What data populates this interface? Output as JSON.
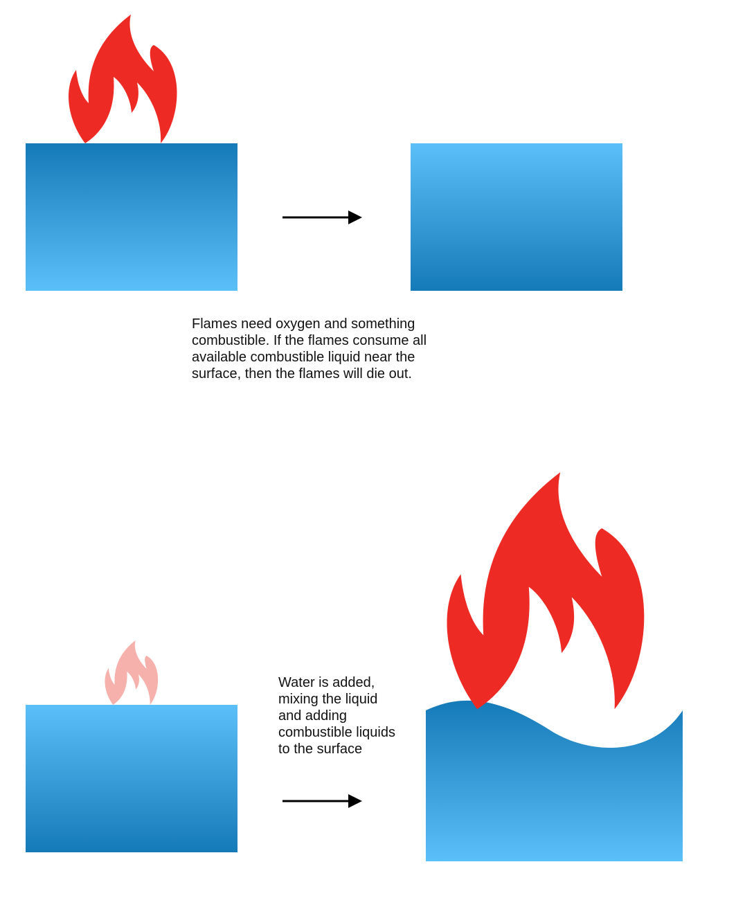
{
  "captions": {
    "top": "Flames need oxygen and something combustible. If the flames consume all available combustible liquid near the surface, then the flames will die out.",
    "bottom": "Water is added, mixing the liquid and adding combustible liquids to the surface"
  },
  "colors": {
    "flame": "#ee2a24",
    "flame_faded": "#f7b1ad",
    "liquid_dark": "#157ab8",
    "liquid_light": "#5bc0f8",
    "arrow": "#000000"
  },
  "icons": [
    "flame-icon",
    "arrow-right-icon"
  ]
}
